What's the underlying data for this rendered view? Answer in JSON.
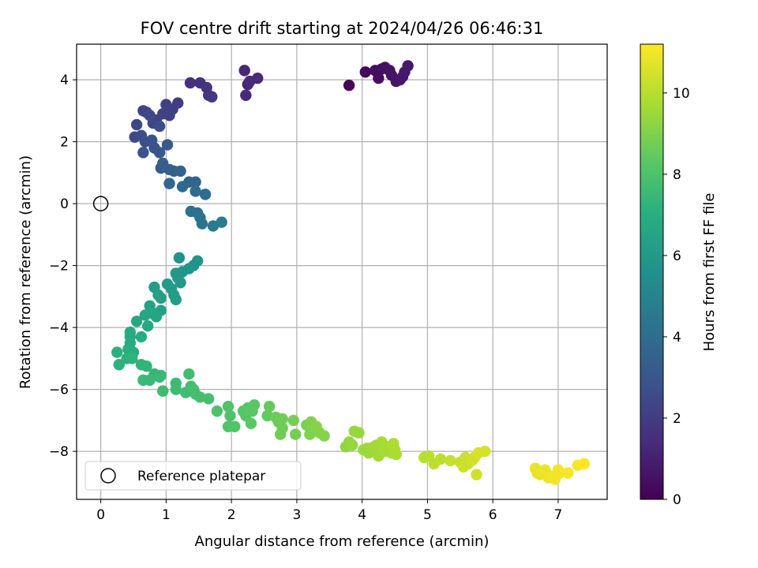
{
  "chart_data": {
    "type": "scatter",
    "title": "FOV centre drift starting at 2024/04/26 06:46:31",
    "xlabel": "Angular distance from reference (arcmin)",
    "ylabel": "Rotation from reference (arcmin)",
    "xlim": [
      -0.37,
      7.75
    ],
    "ylim": [
      -9.55,
      5.15
    ],
    "xticks": [
      0,
      1,
      2,
      3,
      4,
      5,
      6,
      7
    ],
    "yticks": [
      -8,
      -6,
      -4,
      -2,
      0,
      2,
      4
    ],
    "grid": true,
    "legend": {
      "placement": "lower-left",
      "entries": [
        "Reference platepar"
      ]
    },
    "reference_point": {
      "x": 0,
      "y": 0,
      "label": "Reference platepar"
    },
    "colorbar": {
      "label": "Hours from first FF file",
      "range": [
        0,
        11.2
      ],
      "ticks": [
        0,
        2,
        4,
        6,
        8,
        10
      ],
      "colormap": "viridis"
    },
    "series": [
      {
        "points": [
          [
            3.8,
            3.82,
            0.2
          ],
          [
            4.05,
            4.25,
            0.3
          ],
          [
            4.2,
            4.3,
            0.4
          ],
          [
            4.25,
            4.05,
            0.4
          ],
          [
            4.3,
            4.35,
            0.4
          ],
          [
            4.35,
            4.4,
            0.5
          ],
          [
            4.42,
            4.3,
            0.5
          ],
          [
            4.45,
            4.15,
            0.6
          ],
          [
            4.52,
            3.95,
            0.6
          ],
          [
            4.58,
            4.0,
            0.7
          ],
          [
            4.62,
            4.1,
            0.7
          ],
          [
            4.65,
            4.25,
            0.8
          ],
          [
            4.7,
            4.45,
            0.8
          ],
          [
            2.2,
            4.3,
            1.2
          ],
          [
            2.25,
            3.85,
            1.2
          ],
          [
            2.22,
            3.5,
            1.3
          ],
          [
            2.28,
            3.95,
            1.3
          ],
          [
            2.4,
            4.05,
            1.3
          ],
          [
            1.37,
            3.9,
            1.6
          ],
          [
            1.52,
            3.9,
            1.6
          ],
          [
            1.62,
            3.75,
            1.7
          ],
          [
            1.65,
            3.5,
            1.7
          ],
          [
            1.7,
            3.45,
            1.8
          ],
          [
            1.18,
            3.25,
            2.0
          ],
          [
            1.1,
            3.05,
            2.0
          ],
          [
            1.0,
            3.2,
            2.1
          ],
          [
            1.05,
            2.85,
            2.1
          ],
          [
            0.95,
            2.9,
            2.2
          ],
          [
            0.85,
            2.7,
            2.2
          ],
          [
            0.7,
            2.95,
            2.3
          ],
          [
            0.65,
            3.0,
            2.3
          ],
          [
            0.8,
            2.6,
            2.4
          ],
          [
            0.55,
            2.55,
            2.4
          ],
          [
            0.52,
            2.15,
            2.5
          ],
          [
            0.75,
            2.85,
            2.5
          ],
          [
            0.9,
            2.5,
            2.6
          ],
          [
            0.62,
            2.2,
            2.6
          ],
          [
            0.68,
            2.0,
            2.7
          ],
          [
            0.78,
            2.05,
            2.8
          ],
          [
            0.82,
            1.8,
            2.8
          ],
          [
            0.65,
            1.65,
            2.9
          ],
          [
            0.9,
            1.65,
            3.0
          ],
          [
            1.02,
            1.9,
            3.1
          ],
          [
            0.92,
            1.15,
            3.2
          ],
          [
            0.95,
            1.3,
            3.3
          ],
          [
            1.05,
            1.1,
            3.3
          ],
          [
            1.12,
            1.05,
            3.4
          ],
          [
            1.22,
            1.05,
            3.5
          ],
          [
            1.35,
            0.7,
            3.6
          ],
          [
            1.45,
            0.7,
            3.6
          ],
          [
            1.05,
            0.65,
            3.7
          ],
          [
            1.25,
            0.55,
            3.8
          ],
          [
            1.45,
            0.4,
            3.9
          ],
          [
            1.6,
            0.3,
            4.0
          ],
          [
            1.38,
            -0.25,
            4.1
          ],
          [
            1.48,
            -0.3,
            4.2
          ],
          [
            1.52,
            -0.45,
            4.3
          ],
          [
            1.55,
            -0.65,
            4.3
          ],
          [
            1.72,
            -0.72,
            4.5
          ],
          [
            1.85,
            -0.6,
            4.6
          ],
          [
            1.2,
            -1.75,
            5.6
          ],
          [
            1.48,
            -1.85,
            5.7
          ],
          [
            1.42,
            -2.0,
            5.7
          ],
          [
            1.35,
            -2.1,
            5.8
          ],
          [
            1.25,
            -2.2,
            5.8
          ],
          [
            1.15,
            -2.25,
            5.9
          ],
          [
            1.18,
            -2.4,
            5.9
          ],
          [
            1.22,
            -2.55,
            6.0
          ],
          [
            1.02,
            -2.6,
            6.0
          ],
          [
            0.82,
            -2.7,
            6.1
          ],
          [
            1.08,
            -2.75,
            6.1
          ],
          [
            1.12,
            -2.95,
            6.2
          ],
          [
            1.15,
            -3.1,
            6.2
          ],
          [
            0.88,
            -2.95,
            6.3
          ],
          [
            0.92,
            -3.05,
            6.3
          ],
          [
            0.75,
            -3.3,
            6.4
          ],
          [
            0.92,
            -3.45,
            6.4
          ],
          [
            0.8,
            -3.55,
            6.5
          ],
          [
            0.85,
            -3.65,
            6.5
          ],
          [
            0.68,
            -3.6,
            6.6
          ],
          [
            0.55,
            -3.8,
            6.6
          ],
          [
            0.72,
            -3.95,
            6.7
          ],
          [
            0.45,
            -4.15,
            6.8
          ],
          [
            0.45,
            -4.3,
            6.8
          ],
          [
            0.62,
            -4.3,
            6.9
          ],
          [
            0.45,
            -4.5,
            6.9
          ],
          [
            0.42,
            -4.7,
            7.0
          ],
          [
            0.5,
            -4.8,
            7.0
          ],
          [
            0.25,
            -4.8,
            7.1
          ],
          [
            0.4,
            -5.0,
            7.1
          ],
          [
            0.48,
            -5.0,
            7.2
          ],
          [
            0.28,
            -5.2,
            7.2
          ],
          [
            0.62,
            -5.2,
            7.3
          ],
          [
            0.7,
            -5.25,
            7.3
          ],
          [
            0.82,
            -5.5,
            7.4
          ],
          [
            0.9,
            -5.6,
            7.4
          ],
          [
            0.92,
            -5.55,
            7.5
          ],
          [
            0.65,
            -5.7,
            7.5
          ],
          [
            0.75,
            -5.7,
            7.5
          ],
          [
            0.95,
            -6.05,
            7.6
          ],
          [
            1.15,
            -5.8,
            7.6
          ],
          [
            1.15,
            -6.0,
            7.6
          ],
          [
            1.35,
            -5.5,
            7.7
          ],
          [
            1.38,
            -5.9,
            7.7
          ],
          [
            1.3,
            -6.1,
            7.7
          ],
          [
            1.45,
            -6.15,
            7.8
          ],
          [
            1.52,
            -6.25,
            7.8
          ],
          [
            1.65,
            -6.3,
            7.8
          ],
          [
            1.42,
            -6.0,
            7.8
          ],
          [
            1.78,
            -6.7,
            8.0
          ],
          [
            1.95,
            -6.55,
            8.0
          ],
          [
            1.98,
            -6.85,
            8.0
          ],
          [
            1.95,
            -7.2,
            8.1
          ],
          [
            2.05,
            -7.2,
            8.1
          ],
          [
            2.18,
            -6.7,
            8.2
          ],
          [
            2.22,
            -6.85,
            8.2
          ],
          [
            2.25,
            -6.6,
            8.2
          ],
          [
            2.32,
            -6.7,
            8.3
          ],
          [
            2.35,
            -6.5,
            8.3
          ],
          [
            2.3,
            -7.1,
            8.3
          ],
          [
            2.55,
            -6.85,
            8.5
          ],
          [
            2.58,
            -6.55,
            8.5
          ],
          [
            2.68,
            -6.9,
            8.6
          ],
          [
            2.72,
            -7.05,
            8.6
          ],
          [
            2.78,
            -6.95,
            8.7
          ],
          [
            2.75,
            -7.45,
            8.7
          ],
          [
            2.78,
            -7.25,
            8.7
          ],
          [
            2.95,
            -7.0,
            8.8
          ],
          [
            2.98,
            -7.45,
            8.8
          ],
          [
            3.15,
            -7.15,
            8.9
          ],
          [
            3.2,
            -7.45,
            9.0
          ],
          [
            3.25,
            -7.3,
            9.0
          ],
          [
            3.22,
            -7.05,
            9.0
          ],
          [
            3.3,
            -7.2,
            9.1
          ],
          [
            3.35,
            -7.4,
            9.1
          ],
          [
            3.42,
            -7.5,
            9.1
          ],
          [
            3.75,
            -7.85,
            9.3
          ],
          [
            3.8,
            -7.7,
            9.3
          ],
          [
            3.85,
            -7.8,
            9.4
          ],
          [
            3.88,
            -7.35,
            9.4
          ],
          [
            3.95,
            -7.4,
            9.4
          ],
          [
            4.02,
            -7.95,
            9.5
          ],
          [
            4.08,
            -7.9,
            9.5
          ],
          [
            4.1,
            -8.05,
            9.5
          ],
          [
            4.18,
            -7.85,
            9.6
          ],
          [
            4.22,
            -7.8,
            9.6
          ],
          [
            4.25,
            -8.15,
            9.6
          ],
          [
            4.3,
            -7.7,
            9.7
          ],
          [
            4.35,
            -8.0,
            9.7
          ],
          [
            4.4,
            -7.85,
            9.7
          ],
          [
            4.45,
            -8.05,
            9.7
          ],
          [
            4.48,
            -7.75,
            9.8
          ],
          [
            4.5,
            -7.95,
            9.8
          ],
          [
            4.52,
            -8.1,
            9.8
          ],
          [
            4.95,
            -8.2,
            10.0
          ],
          [
            5.02,
            -8.15,
            10.0
          ],
          [
            5.1,
            -8.4,
            10.1
          ],
          [
            5.2,
            -8.25,
            10.1
          ],
          [
            5.35,
            -8.3,
            10.2
          ],
          [
            5.5,
            -8.35,
            10.2
          ],
          [
            5.55,
            -8.5,
            10.3
          ],
          [
            5.58,
            -8.2,
            10.3
          ],
          [
            5.62,
            -8.4,
            10.3
          ],
          [
            5.68,
            -8.3,
            10.4
          ],
          [
            5.72,
            -8.2,
            10.4
          ],
          [
            5.75,
            -8.75,
            10.4
          ],
          [
            5.78,
            -8.05,
            10.5
          ],
          [
            5.88,
            -8.0,
            10.5
          ],
          [
            6.65,
            -8.55,
            10.8
          ],
          [
            6.68,
            -8.7,
            10.8
          ],
          [
            6.72,
            -8.75,
            10.8
          ],
          [
            6.75,
            -8.65,
            10.9
          ],
          [
            6.8,
            -8.6,
            10.9
          ],
          [
            6.85,
            -8.85,
            10.9
          ],
          [
            6.92,
            -8.8,
            11.0
          ],
          [
            6.95,
            -8.9,
            11.0
          ],
          [
            7.0,
            -8.6,
            11.0
          ],
          [
            7.02,
            -8.7,
            11.0
          ],
          [
            7.15,
            -8.7,
            11.1
          ],
          [
            7.3,
            -8.45,
            11.1
          ],
          [
            7.4,
            -8.4,
            11.2
          ]
        ]
      }
    ]
  }
}
